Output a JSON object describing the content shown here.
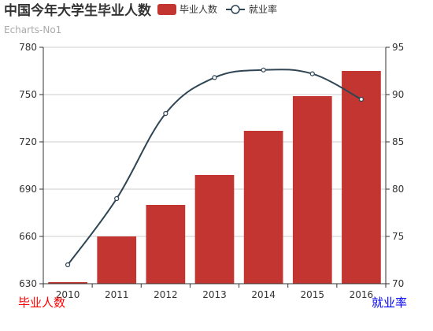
{
  "colors": {
    "bar": "#c23531",
    "line": "#2f4554",
    "grid": "#cccccc",
    "axis": "#333333",
    "left_axis_name": "#ff0000",
    "right_axis_name": "#0000ff"
  },
  "chart_data": {
    "type": "bar",
    "title": "中国今年大学生毕业人数",
    "subtitle": "Echarts-No1",
    "categories": [
      "2010",
      "2011",
      "2012",
      "2013",
      "2014",
      "2015",
      "2016"
    ],
    "legend": [
      "毕业人数",
      "就业率"
    ],
    "series": [
      {
        "name": "毕业人数",
        "type": "bar",
        "axis": "left",
        "values": [
          631,
          660,
          680,
          699,
          727,
          749,
          765
        ]
      },
      {
        "name": "就业率",
        "type": "line",
        "axis": "right",
        "values": [
          72,
          79,
          88,
          91.8,
          92.6,
          92.2,
          89.5
        ]
      }
    ],
    "y_left": {
      "name": "毕业人数",
      "min": 630,
      "max": 780,
      "ticks": [
        "630",
        "660",
        "690",
        "720",
        "750",
        "780"
      ]
    },
    "y_right": {
      "name": "就业率",
      "min": 70,
      "max": 95,
      "ticks": [
        "70",
        "75",
        "80",
        "85",
        "90",
        "95"
      ]
    },
    "grid": true,
    "legend_position": "top"
  }
}
